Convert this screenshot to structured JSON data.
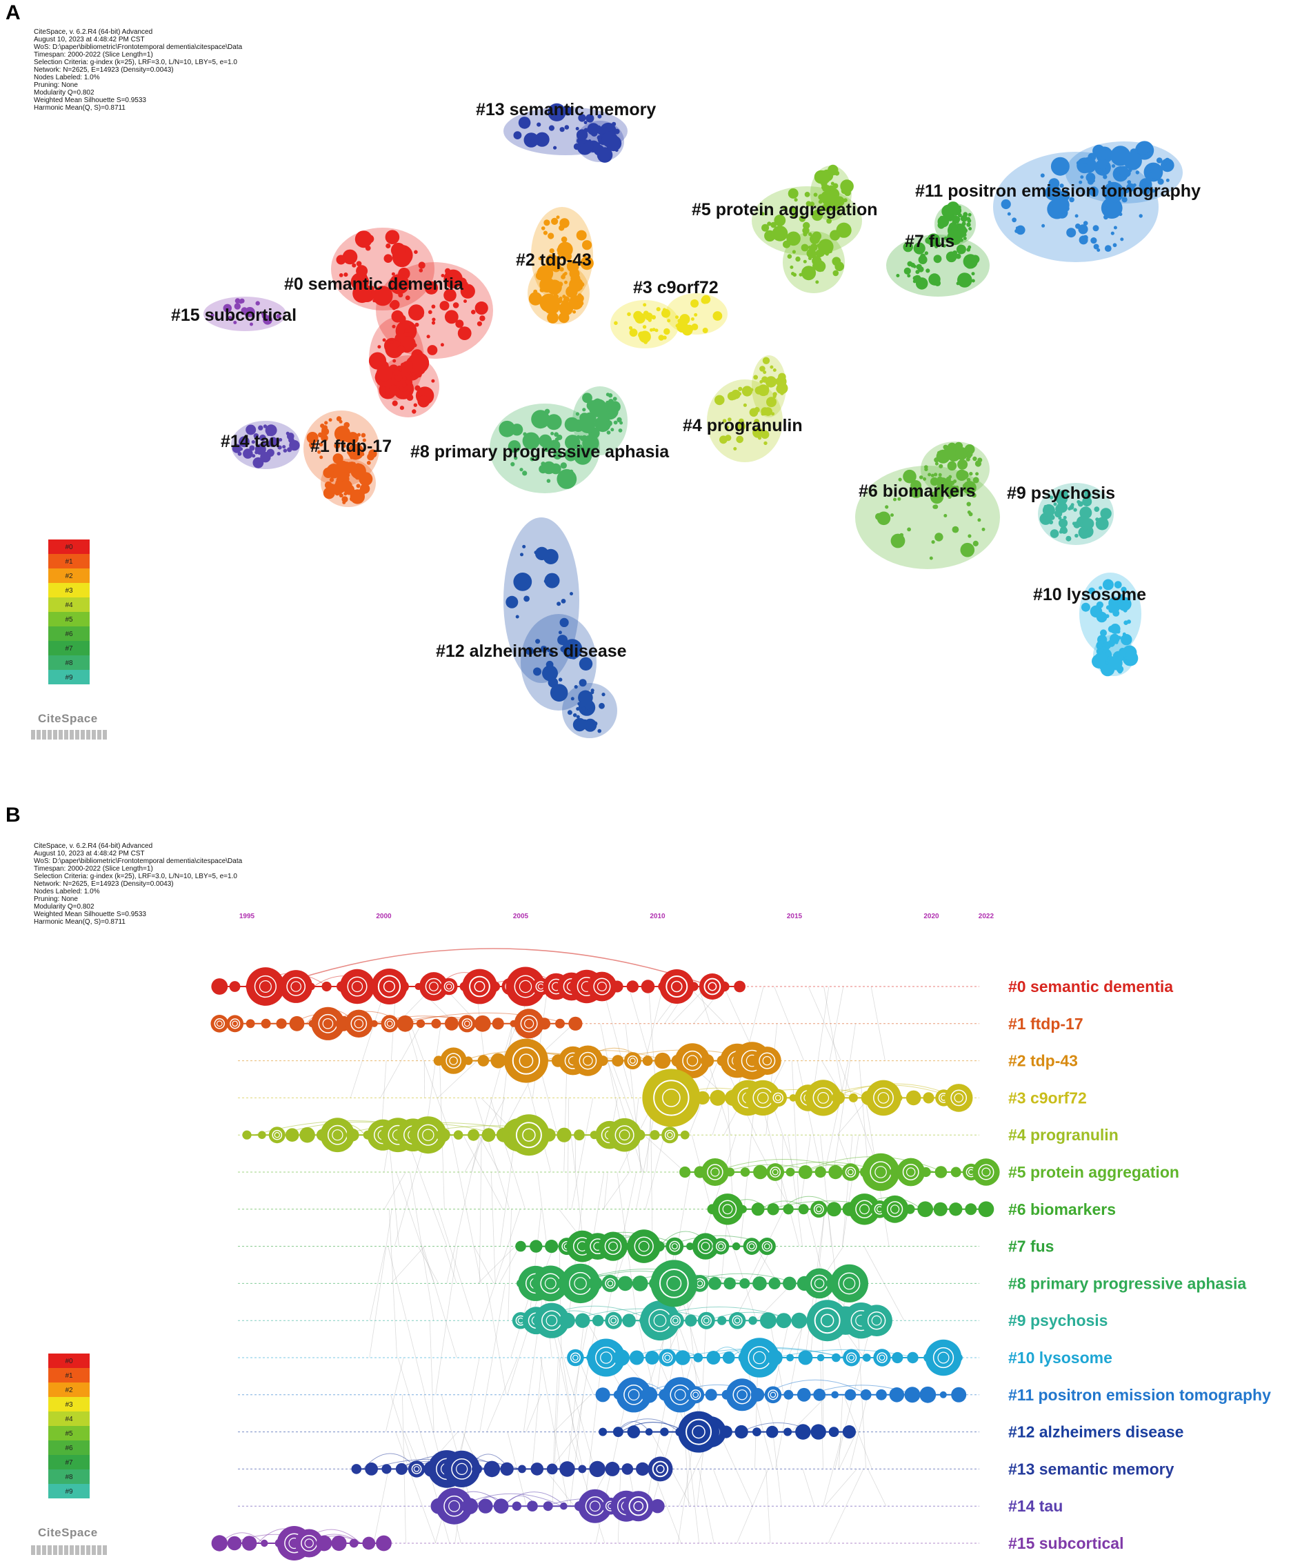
{
  "panel_a": {
    "letter": "A",
    "meta_lines": [
      "CiteSpace, v. 6.2.R4 (64-bit) Advanced",
      "August 10, 2023 at 4:48:42 PM CST",
      "WoS: D:\\paper\\bibliometric\\Frontotemporal dementia\\citespace\\Data",
      "Timespan: 2000-2022 (Slice Length=1)",
      "Selection Criteria: g-index (k=25), LRF=3.0, L/N=10, LBY=5, e=1.0",
      "Network: N=2625, E=14923 (Density=0.0043)",
      "Nodes Labeled: 1.0%",
      "Pruning: None",
      "Modularity Q=0.802",
      "Weighted Mean Silhouette S=0.9533",
      "Harmonic Mean(Q, S)=0.8711"
    ],
    "clusters": [
      {
        "id": 0,
        "label": "#0 semantic dementia",
        "color": "#e8231e"
      },
      {
        "id": 1,
        "label": "#1 ftdp-17",
        "color": "#ec5e16"
      },
      {
        "id": 2,
        "label": "#2 tdp-43",
        "color": "#f39a0e"
      },
      {
        "id": 3,
        "label": "#3 c9orf72",
        "color": "#eee11a"
      },
      {
        "id": 4,
        "label": "#4 progranulin",
        "color": "#b5d12a"
      },
      {
        "id": 5,
        "label": "#5 protein aggregation",
        "color": "#7cc22b"
      },
      {
        "id": 6,
        "label": "#6 biomarkers",
        "color": "#63b83a"
      },
      {
        "id": 7,
        "label": "#7 fus",
        "color": "#41ad34"
      },
      {
        "id": 8,
        "label": "#8 primary progressive aphasia",
        "color": "#47b260"
      },
      {
        "id": 9,
        "label": "#9 psychosis",
        "color": "#3fb7a1"
      },
      {
        "id": 10,
        "label": "#10 lysosome",
        "color": "#2fb7e6"
      },
      {
        "id": 11,
        "label": "#11 positron emission tomography",
        "color": "#2d85d7"
      },
      {
        "id": 12,
        "label": "#12 alzheimers disease",
        "color": "#1e4faa"
      },
      {
        "id": 13,
        "label": "#13 semantic memory",
        "color": "#2a3fa8"
      },
      {
        "id": 14,
        "label": "#14 tau",
        "color": "#5a44b0"
      },
      {
        "id": 15,
        "label": "#15 subcortical",
        "color": "#8a44b5"
      }
    ],
    "legend": [
      "#0",
      "#1",
      "#2",
      "#3",
      "#4",
      "#5",
      "#6",
      "#7",
      "#8",
      "#9"
    ],
    "logo": "CiteSpace"
  },
  "panel_b": {
    "letter": "B",
    "meta_lines": [
      "CiteSpace, v. 6.2.R4 (64-bit) Advanced",
      "August 10, 2023 at 4:48:42 PM CST",
      "WoS: D:\\paper\\bibliometric\\Frontotemporal dementia\\citespace\\Data",
      "Timespan: 2000-2022 (Slice Length=1)",
      "Selection Criteria: g-index (k=25), LRF=3.0, L/N=10, LBY=5, e=1.0",
      "Network: N=2625, E=14923 (Density=0.0043)",
      "Nodes Labeled: 1.0%",
      "Pruning: None",
      "Modularity Q=0.802",
      "Weighted Mean Silhouette S=0.9533",
      "Harmonic Mean(Q, S)=0.8711"
    ],
    "years": [
      "1995",
      "2000",
      "2005",
      "2010",
      "2015",
      "2020",
      "2022"
    ],
    "rows": [
      {
        "label": "#0 semantic dementia",
        "color": "#d8261f",
        "start": 1994,
        "end": 2013
      },
      {
        "label": "#1 ftdp-17",
        "color": "#d9541a",
        "start": 1994,
        "end": 2007
      },
      {
        "label": "#2 tdp-43",
        "color": "#d88b12",
        "start": 2002,
        "end": 2014
      },
      {
        "label": "#3 c9orf72",
        "color": "#c9bd1b",
        "start": 2010,
        "end": 2021
      },
      {
        "label": "#4 progranulin",
        "color": "#9fbe24",
        "start": 1995,
        "end": 2011
      },
      {
        "label": "#5 protein aggregation",
        "color": "#5fb52b",
        "start": 2011,
        "end": 2022
      },
      {
        "label": "#6 biomarkers",
        "color": "#3eaa2f",
        "start": 2012,
        "end": 2022
      },
      {
        "label": "#7 fus",
        "color": "#2fa33a",
        "start": 2005,
        "end": 2014
      },
      {
        "label": "#8 primary progressive aphasia",
        "color": "#2faa55",
        "start": 2005,
        "end": 2017
      },
      {
        "label": "#9 psychosis",
        "color": "#2bae97",
        "start": 2005,
        "end": 2018
      },
      {
        "label": "#10 lysosome",
        "color": "#1ea6d4",
        "start": 2007,
        "end": 2021
      },
      {
        "label": "#11 positron emission tomography",
        "color": "#2277cd",
        "start": 2008,
        "end": 2021
      },
      {
        "label": "#12 alzheimers disease",
        "color": "#1a3e9e",
        "start": 2008,
        "end": 2017
      },
      {
        "label": "#13 semantic memory",
        "color": "#253b9c",
        "start": 1999,
        "end": 2010
      },
      {
        "label": "#14 tau",
        "color": "#5a3fae",
        "start": 2002,
        "end": 2010
      },
      {
        "label": "#15 subcortical",
        "color": "#7f3aa8",
        "start": 1994,
        "end": 2000
      }
    ],
    "legend": [
      "#0",
      "#1",
      "#2",
      "#3",
      "#4",
      "#5",
      "#6",
      "#7",
      "#8",
      "#9"
    ],
    "logo": "CiteSpace"
  }
}
